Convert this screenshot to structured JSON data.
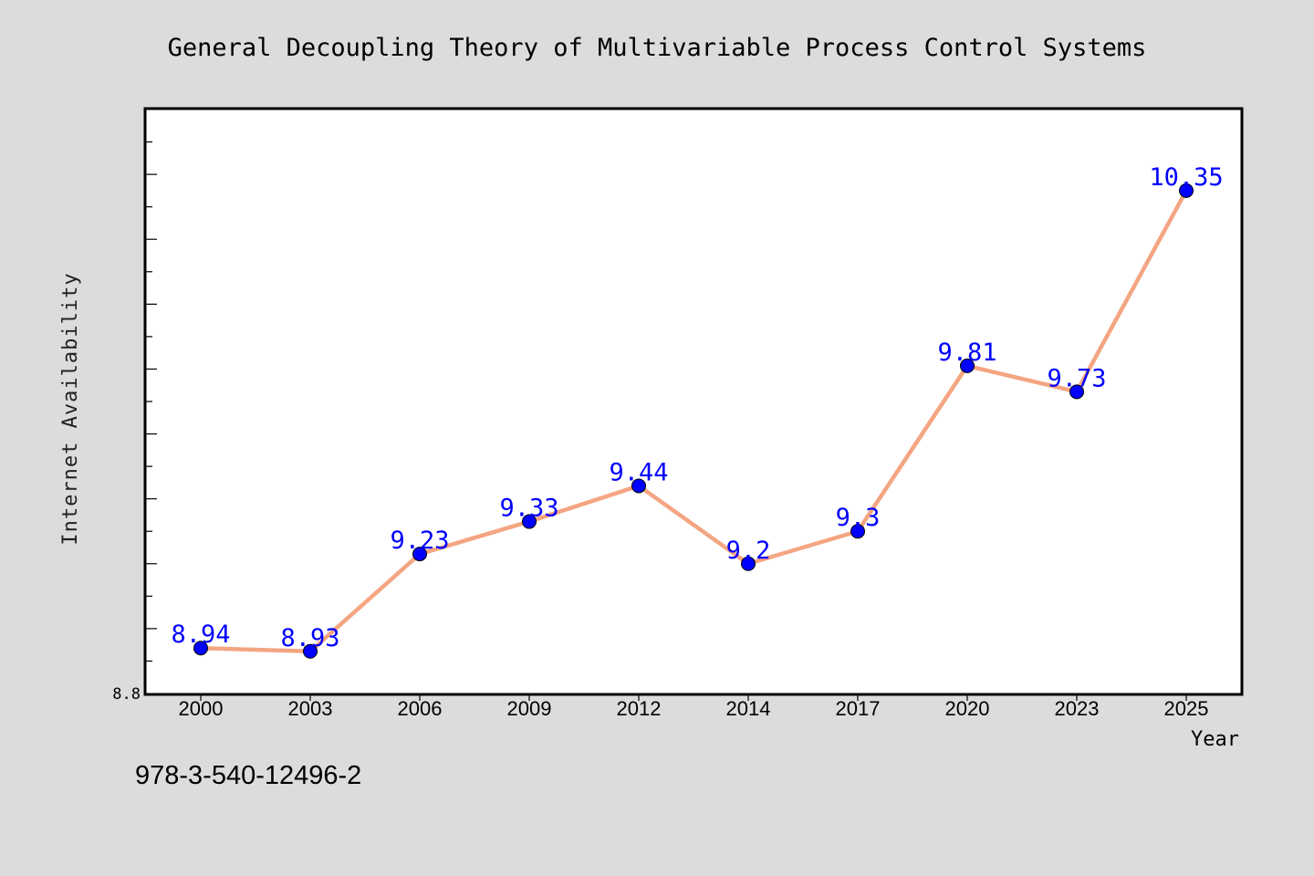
{
  "chart_data": {
    "type": "line",
    "title": "General Decoupling Theory of Multivariable Process Control Systems",
    "xlabel": "Year",
    "ylabel": "Internet Availability",
    "categories": [
      "2000",
      "2003",
      "2006",
      "2009",
      "2012",
      "2014",
      "2017",
      "2020",
      "2023",
      "2025"
    ],
    "series": [
      {
        "values": [
          8.94,
          8.93,
          9.23,
          9.33,
          9.44,
          9.2,
          9.3,
          9.81,
          9.73,
          10.35
        ]
      }
    ],
    "data_labels": [
      "8.94",
      "8.93",
      "9.23",
      "9.33",
      "9.44",
      "9.2",
      "9.3",
      "9.81",
      "9.73",
      "10.35"
    ],
    "ylim": [
      8.8,
      10.6
    ],
    "y_tick_labels": [
      "8.8"
    ],
    "grid": false,
    "legend": "none",
    "line_color": "#f4a582",
    "marker_color": "#0000ff",
    "label_color": "#0000ff",
    "background": "#dcdcdc",
    "plot_background": "#ffffff"
  },
  "footer": {
    "isbn": "978-3-540-12496-2"
  }
}
